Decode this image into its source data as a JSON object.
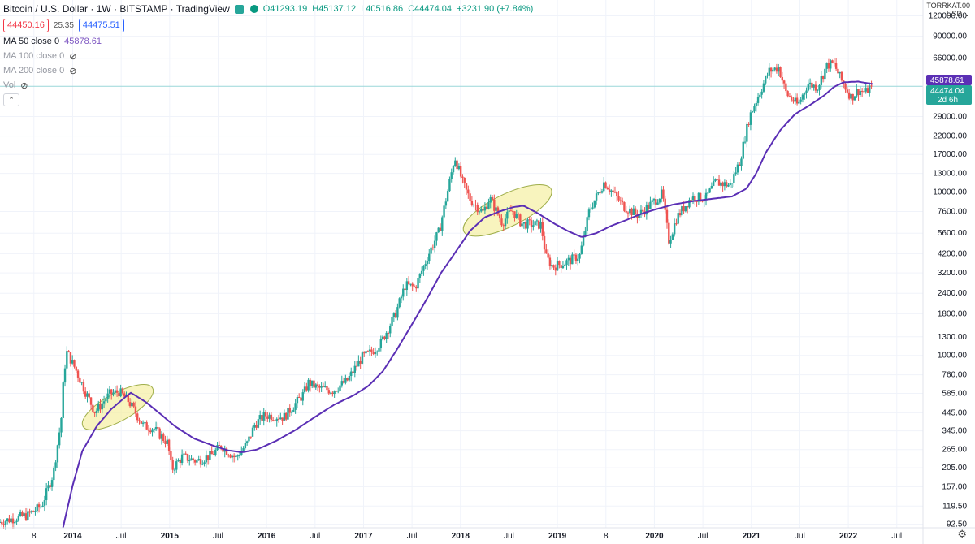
{
  "header": {
    "symbol": "Bitcoin / U.S. Dollar · 1W · BITSTAMP · TradingView",
    "open": "O41293.19",
    "high": "H45137.12",
    "low": "L40516.86",
    "close": "C44474.04",
    "change": "+3231.90 (+7.84%)"
  },
  "trade": {
    "sell": "44450.16",
    "spread": "25.35",
    "buy": "44475.51"
  },
  "indicators": {
    "ma50_label": "MA 50 close 0",
    "ma50_value": "45878.61",
    "ma100_label": "MA 100 close 0",
    "ma200_label": "MA 200 close 0",
    "vol_label": "Vol"
  },
  "price_scale": {
    "label_top": "TORRKAT.00",
    "currency": "USD"
  },
  "badges": {
    "ma_value": "45878.61",
    "price": "44474.04",
    "countdown": "2d 6h"
  },
  "colors": {
    "up": "#26a69a",
    "down": "#ef5350",
    "ma": "#5b2fb5",
    "highlight_fill": "#f5ee9b",
    "highlight_stroke": "#9fae4a",
    "price_line": "#9ad7d9"
  },
  "chart_data": {
    "type": "candlestick",
    "title": "Bitcoin / U.S. Dollar · 1W · BITSTAMP",
    "scale": "log",
    "ylim": [
      88,
      150000
    ],
    "y_ticks": [
      120000,
      90000,
      66000,
      45878.61,
      44474.04,
      29000,
      22000,
      17000,
      13000,
      10000,
      7600,
      5600,
      4200,
      3200,
      2400,
      1800,
      1300,
      1000,
      760,
      585,
      445,
      345,
      265,
      205,
      157,
      119.5,
      92.5
    ],
    "y_tick_labels": [
      "120000.00",
      "90000.00",
      "66000.00",
      "29000.00",
      "22000.00",
      "17000.00",
      "13000.00",
      "10000.00",
      "7600.00",
      "5600.00",
      "4200.00",
      "3200.00",
      "2400.00",
      "1800.00",
      "1300.00",
      "1000.00",
      "760.00",
      "585.00",
      "445.00",
      "345.00",
      "265.00",
      "205.00",
      "157.00",
      "119.50",
      "92.50"
    ],
    "x_tick_labels": [
      "8",
      "2014",
      "Jul",
      "2015",
      "Jul",
      "2016",
      "Jul",
      "2017",
      "Jul",
      "2018",
      "Jul",
      "2019",
      "8",
      "2020",
      "Jul",
      "2021",
      "Jul",
      "2022",
      "Jul"
    ],
    "x_tick_times": [
      2013.6,
      2014.0,
      2014.5,
      2015.0,
      2015.5,
      2016.0,
      2016.5,
      2017.0,
      2017.5,
      2018.0,
      2018.5,
      2019.0,
      2019.5,
      2020.0,
      2020.5,
      2021.0,
      2021.5,
      2022.0,
      2022.5
    ],
    "xlim": [
      2013.25,
      2022.77
    ],
    "price_keyframes": [
      [
        2013.25,
        95
      ],
      [
        2013.4,
        100
      ],
      [
        2013.55,
        105
      ],
      [
        2013.7,
        120
      ],
      [
        2013.82,
        190
      ],
      [
        2013.9,
        400
      ],
      [
        2013.93,
        800
      ],
      [
        2013.96,
        1050
      ],
      [
        2014.05,
        820
      ],
      [
        2014.15,
        600
      ],
      [
        2014.25,
        450
      ],
      [
        2014.4,
        580
      ],
      [
        2014.5,
        600
      ],
      [
        2014.6,
        520
      ],
      [
        2014.75,
        370
      ],
      [
        2014.85,
        360
      ],
      [
        2015.0,
        290
      ],
      [
        2015.04,
        200
      ],
      [
        2015.15,
        240
      ],
      [
        2015.3,
        225
      ],
      [
        2015.45,
        245
      ],
      [
        2015.55,
        280
      ],
      [
        2015.7,
        235
      ],
      [
        2015.82,
        290
      ],
      [
        2015.9,
        380
      ],
      [
        2016.0,
        430
      ],
      [
        2016.2,
        420
      ],
      [
        2016.4,
        580
      ],
      [
        2016.45,
        680
      ],
      [
        2016.55,
        630
      ],
      [
        2016.7,
        610
      ],
      [
        2016.85,
        700
      ],
      [
        2017.0,
        970
      ],
      [
        2017.1,
        1050
      ],
      [
        2017.2,
        1200
      ],
      [
        2017.35,
        1800
      ],
      [
        2017.45,
        2700
      ],
      [
        2017.55,
        2600
      ],
      [
        2017.7,
        4300
      ],
      [
        2017.8,
        5800
      ],
      [
        2017.9,
        11000
      ],
      [
        2017.96,
        16500
      ],
      [
        2018.05,
        11000
      ],
      [
        2018.12,
        9000
      ],
      [
        2018.25,
        7500
      ],
      [
        2018.32,
        9200
      ],
      [
        2018.45,
        6500
      ],
      [
        2018.55,
        7800
      ],
      [
        2018.65,
        6400
      ],
      [
        2018.85,
        6300
      ],
      [
        2018.9,
        4000
      ],
      [
        2018.97,
        3500
      ],
      [
        2019.1,
        3700
      ],
      [
        2019.25,
        4100
      ],
      [
        2019.35,
        7800
      ],
      [
        2019.5,
        11500
      ],
      [
        2019.6,
        9800
      ],
      [
        2019.7,
        8200
      ],
      [
        2019.85,
        7200
      ],
      [
        2020.0,
        8600
      ],
      [
        2020.1,
        9800
      ],
      [
        2020.17,
        5000
      ],
      [
        2020.25,
        7000
      ],
      [
        2020.4,
        9300
      ],
      [
        2020.55,
        9200
      ],
      [
        2020.65,
        11500
      ],
      [
        2020.8,
        11000
      ],
      [
        2020.9,
        15500
      ],
      [
        2021.0,
        29000
      ],
      [
        2021.1,
        40000
      ],
      [
        2021.2,
        55000
      ],
      [
        2021.3,
        58000
      ],
      [
        2021.38,
        40000
      ],
      [
        2021.5,
        34000
      ],
      [
        2021.6,
        46000
      ],
      [
        2021.7,
        44000
      ],
      [
        2021.8,
        60000
      ],
      [
        2021.87,
        61000
      ],
      [
        2021.95,
        48000
      ],
      [
        2022.05,
        38000
      ],
      [
        2022.12,
        42000
      ],
      [
        2022.2,
        41000
      ],
      [
        2022.25,
        44474
      ]
    ],
    "ma50_keyframes": [
      [
        2013.9,
        88
      ],
      [
        2014.0,
        160
      ],
      [
        2014.1,
        260
      ],
      [
        2014.25,
        370
      ],
      [
        2014.4,
        470
      ],
      [
        2014.55,
        560
      ],
      [
        2014.6,
        590
      ],
      [
        2014.75,
        520
      ],
      [
        2014.9,
        440
      ],
      [
        2015.05,
        370
      ],
      [
        2015.25,
        310
      ],
      [
        2015.45,
        280
      ],
      [
        2015.6,
        262
      ],
      [
        2015.75,
        255
      ],
      [
        2015.9,
        265
      ],
      [
        2016.1,
        300
      ],
      [
        2016.3,
        350
      ],
      [
        2016.5,
        420
      ],
      [
        2016.7,
        500
      ],
      [
        2016.9,
        570
      ],
      [
        2017.05,
        650
      ],
      [
        2017.2,
        800
      ],
      [
        2017.35,
        1100
      ],
      [
        2017.5,
        1550
      ],
      [
        2017.65,
        2200
      ],
      [
        2017.8,
        3200
      ],
      [
        2017.95,
        4300
      ],
      [
        2018.1,
        5800
      ],
      [
        2018.25,
        7000
      ],
      [
        2018.4,
        7600
      ],
      [
        2018.55,
        8100
      ],
      [
        2018.65,
        8250
      ],
      [
        2018.8,
        7400
      ],
      [
        2018.95,
        6500
      ],
      [
        2019.1,
        5800
      ],
      [
        2019.25,
        5300
      ],
      [
        2019.4,
        5600
      ],
      [
        2019.55,
        6200
      ],
      [
        2019.7,
        6700
      ],
      [
        2019.85,
        7300
      ],
      [
        2020.0,
        7800
      ],
      [
        2020.2,
        8400
      ],
      [
        2020.4,
        8800
      ],
      [
        2020.6,
        9100
      ],
      [
        2020.8,
        9400
      ],
      [
        2020.95,
        10500
      ],
      [
        2021.05,
        13000
      ],
      [
        2021.15,
        17500
      ],
      [
        2021.3,
        24000
      ],
      [
        2021.45,
        30000
      ],
      [
        2021.6,
        34000
      ],
      [
        2021.75,
        39000
      ],
      [
        2021.85,
        44000
      ],
      [
        2021.95,
        47000
      ],
      [
        2022.1,
        47500
      ],
      [
        2022.25,
        45878
      ]
    ],
    "annotations": [
      {
        "type": "ellipse",
        "from": [
          2014.15,
          380
        ],
        "to": [
          2014.78,
          610
        ]
      },
      {
        "type": "ellipse",
        "from": [
          2018.08,
          5900
        ],
        "to": [
          2018.89,
          10100
        ]
      }
    ]
  }
}
